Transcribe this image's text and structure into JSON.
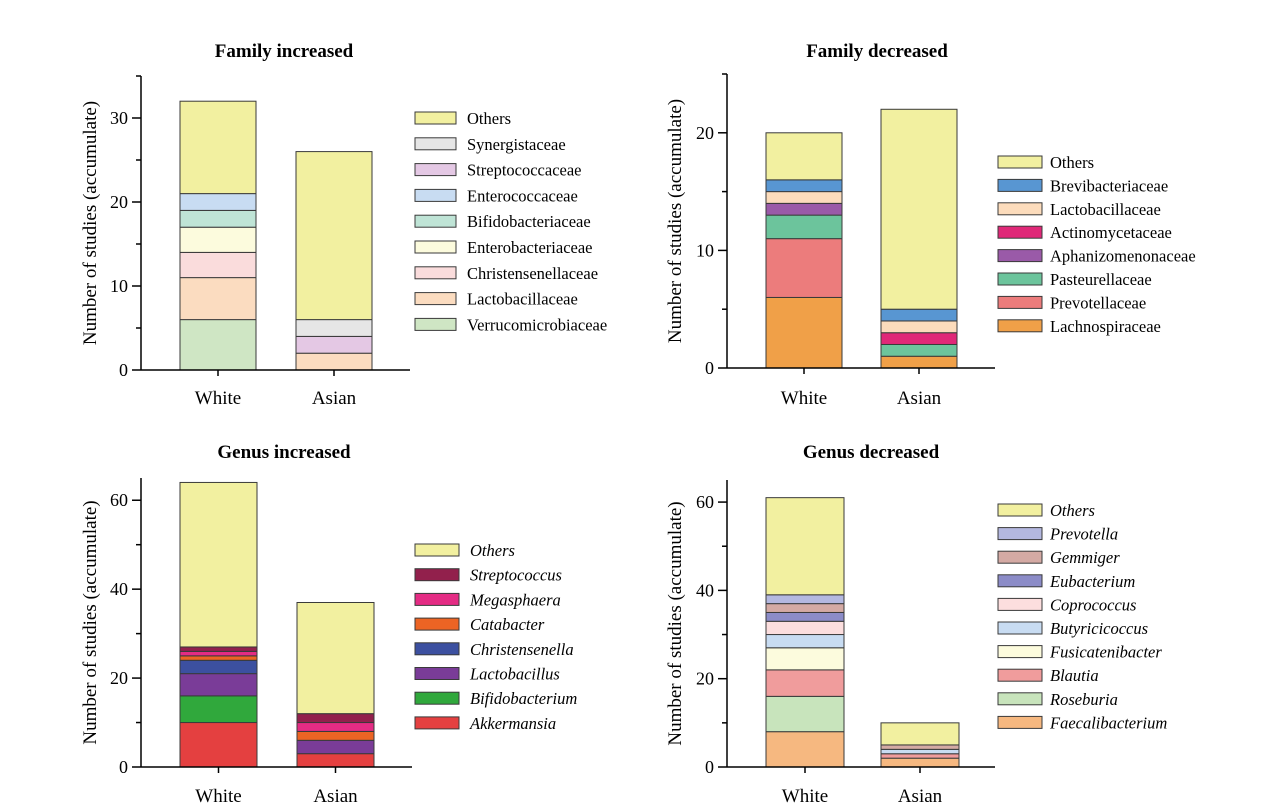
{
  "chart_data": [
    {
      "type": "bar",
      "stacked": true,
      "title": "Family increased",
      "ylabel": "Number of studies (accumulate)",
      "categories": [
        "White",
        "Asian"
      ],
      "ylim": [
        0,
        35
      ],
      "yticks": [
        0,
        10,
        20,
        30
      ],
      "legend_italic": false,
      "series": [
        {
          "name": "Verrucomicrobiaceae",
          "color": "#cfe6c4",
          "values": [
            6,
            0
          ]
        },
        {
          "name": "Lactobacillaceae",
          "color": "#fbdcc0",
          "values": [
            5,
            2
          ]
        },
        {
          "name": "Christensenellaceae",
          "color": "#fadcdc",
          "values": [
            3,
            0
          ]
        },
        {
          "name": "Enterobacteriaceae",
          "color": "#fcfbdd",
          "values": [
            3,
            0
          ]
        },
        {
          "name": "Bifidobacteriaceae",
          "color": "#bfe4d6",
          "values": [
            2,
            0
          ]
        },
        {
          "name": "Enterococcaceae",
          "color": "#c8dcf2",
          "values": [
            2,
            0
          ]
        },
        {
          "name": "Streptococcaceae",
          "color": "#e4c8e4",
          "values": [
            0,
            2
          ]
        },
        {
          "name": "Synergistaceae",
          "color": "#e6e6e6",
          "values": [
            0,
            2
          ]
        },
        {
          "name": "Others",
          "color": "#f2f0a0",
          "values": [
            11,
            20
          ]
        }
      ]
    },
    {
      "type": "bar",
      "stacked": true,
      "title": "Family decreased",
      "ylabel": "Number of studies (accumulate)",
      "categories": [
        "White",
        "Asian"
      ],
      "ylim": [
        0,
        25
      ],
      "yticks": [
        0,
        10,
        20
      ],
      "legend_italic": false,
      "series": [
        {
          "name": "Lachnospiraceae",
          "color": "#f0a048",
          "values": [
            6,
            1
          ]
        },
        {
          "name": "Prevotellaceae",
          "color": "#ec7c7c",
          "values": [
            5,
            0
          ]
        },
        {
          "name": "Pasteurellaceae",
          "color": "#6cc49c",
          "values": [
            2,
            1
          ]
        },
        {
          "name": "Aphanizomenonaceae",
          "color": "#9a5aa8",
          "values": [
            1,
            0
          ]
        },
        {
          "name": "Actinomycetaceae",
          "color": "#e02878",
          "values": [
            0,
            1
          ]
        },
        {
          "name": "Lactobacillaceae",
          "color": "#fcdcbc",
          "values": [
            1,
            1
          ]
        },
        {
          "name": "Brevibacteriaceae",
          "color": "#5896d2",
          "values": [
            1,
            1
          ]
        },
        {
          "name": "Others",
          "color": "#f2f0a0",
          "values": [
            4,
            17
          ]
        }
      ]
    },
    {
      "type": "bar",
      "stacked": true,
      "title": "Genus increased",
      "ylabel": "Number of studies (accumulate)",
      "categories": [
        "White",
        "Asian"
      ],
      "ylim": [
        0,
        65
      ],
      "yticks": [
        0,
        20,
        40,
        60
      ],
      "legend_italic": true,
      "series": [
        {
          "name": "Akkermansia",
          "color": "#e44040",
          "values": [
            10,
            3
          ]
        },
        {
          "name": "Bifidobacterium",
          "color": "#30a83c",
          "values": [
            6,
            0
          ]
        },
        {
          "name": "Lactobacillus",
          "color": "#7a3c98",
          "values": [
            5,
            3
          ]
        },
        {
          "name": "Christensenella",
          "color": "#3c50a0",
          "values": [
            3,
            0
          ]
        },
        {
          "name": "Catabacter",
          "color": "#ec6424",
          "values": [
            1,
            2
          ]
        },
        {
          "name": "Megasphaera",
          "color": "#e42c84",
          "values": [
            1,
            2
          ]
        },
        {
          "name": "Streptococcus",
          "color": "#92204c",
          "values": [
            1,
            2
          ]
        },
        {
          "name": "Others",
          "color": "#f2f0a0",
          "values": [
            37,
            25
          ]
        }
      ]
    },
    {
      "type": "bar",
      "stacked": true,
      "title": "Genus decreased",
      "ylabel": "Number of studies (accumulate)",
      "categories": [
        "White",
        "Asian"
      ],
      "ylim": [
        0,
        65
      ],
      "yticks": [
        0,
        20,
        40,
        60
      ],
      "legend_italic": true,
      "series": [
        {
          "name": "Faecalibacterium",
          "color": "#f6b880",
          "values": [
            8,
            2
          ]
        },
        {
          "name": "Roseburia",
          "color": "#c8e4bc",
          "values": [
            8,
            0
          ]
        },
        {
          "name": "Blautia",
          "color": "#f09c9c",
          "values": [
            6,
            1
          ]
        },
        {
          "name": "Fusicatenibacter",
          "color": "#fcfbdd",
          "values": [
            5,
            0
          ]
        },
        {
          "name": "Butyricicoccus",
          "color": "#c8dcf2",
          "values": [
            3,
            1
          ]
        },
        {
          "name": "Coprococcus",
          "color": "#fcdede",
          "values": [
            3,
            0
          ]
        },
        {
          "name": "Eubacterium",
          "color": "#8c8cc8",
          "values": [
            2,
            0
          ]
        },
        {
          "name": "Gemmiger",
          "color": "#d4aaa4",
          "values": [
            2,
            1
          ]
        },
        {
          "name": "Prevotella",
          "color": "#b4b8e0",
          "values": [
            2,
            0
          ]
        },
        {
          "name": "Others",
          "color": "#f2f0a0",
          "values": [
            22,
            5
          ]
        }
      ]
    }
  ]
}
